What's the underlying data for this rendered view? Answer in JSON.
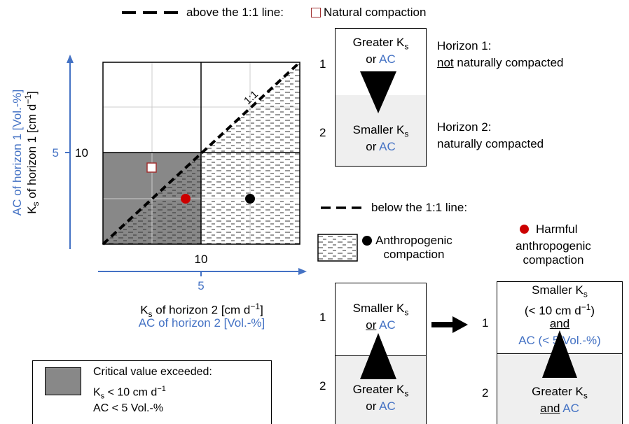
{
  "legend_top": {
    "above_line": "above the 1:1 line:",
    "natural_compaction": "Natural compaction",
    "below_line": "below the 1:1 line:",
    "anthropogenic_compaction": [
      "Anthropogenic",
      "compaction"
    ],
    "harmful_compaction": [
      "Harmful",
      "anthropogenic",
      "compaction"
    ]
  },
  "plot": {
    "diagonal_label": "1:1",
    "y_label_blue": "AC of horizon 1 [Vol.-%]",
    "y_label_black": "K",
    "y_label_black_sub": "s",
    "y_label_black_rest": " of horizon 1 [cm d",
    "y_label_black_sup": "−1",
    "y_label_black_end": "]",
    "y_tick_ac": "5",
    "y_tick_ks": "10",
    "x_tick_ks": "10",
    "x_tick_ac": "5",
    "x_label_black": "K",
    "x_label_black_sub": "s",
    "x_label_black_rest": " of horizon 2 [cm d",
    "x_label_black_sup": "−1",
    "x_label_black_end": "]",
    "x_label_blue": "AC of horizon 2 [Vol.-%]"
  },
  "critical_legend": {
    "line1": "Critical value exceeded:",
    "ks_pre": "K",
    "ks_sub": "s",
    "ks_rest": " < 10 cm d",
    "ks_sup": "−1",
    "ac": "AC < 5 Vol.-%"
  },
  "natural_box": {
    "num1": "1",
    "num2": "2",
    "top_line1_pre": "Greater K",
    "top_line1_sub": "s",
    "top_or": "or ",
    "top_ac": "AC",
    "bot_line1_pre": "Smaller K",
    "bot_line1_sub": "s",
    "bot_or": "or ",
    "bot_ac": "AC",
    "horizon1_title": "Horizon 1:",
    "horizon1_not": "not",
    "horizon1_rest": " naturally compacted",
    "horizon2_title": "Horizon 2:",
    "horizon2_desc": "naturally compacted"
  },
  "anthro_box": {
    "num1": "1",
    "num2": "2",
    "top_line1_pre": "Smaller K",
    "top_line1_sub": "s",
    "top_or": "or",
    "top_ac": " AC",
    "bot_line1_pre": "Greater K",
    "bot_line1_sub": "s",
    "bot_or": "or ",
    "bot_ac": "AC"
  },
  "harmful_box": {
    "num1": "1",
    "num2": "2",
    "top_line1_pre": "Smaller K",
    "top_line1_sub": "s",
    "top_line2_pre": "(< 10 cm d",
    "top_line2_sup": "−1",
    "top_line2_end": ")",
    "top_and": "and",
    "top_ac": "AC (< 5 Vol.-%)",
    "bot_line1_pre": "Greater K",
    "bot_line1_sub": "s",
    "bot_and": "and",
    "bot_ac": " AC"
  },
  "colors": {
    "blue": "#4472c4",
    "critical_fill": "#888888",
    "red_point": "#cc0000",
    "natural_square": "#a03030",
    "lower_box_fill": "#efefef"
  }
}
